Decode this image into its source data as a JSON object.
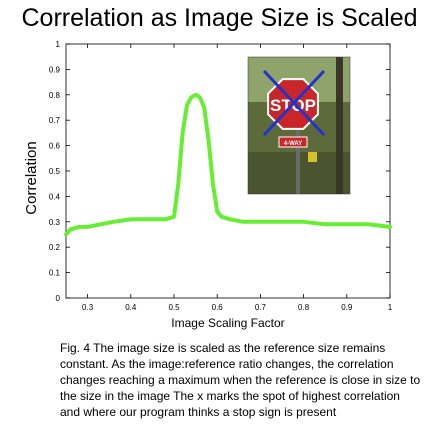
{
  "page": {
    "title": "Correlation as Image Size is Scaled",
    "caption": "Fig. 4 The image size is scaled as the reference size remains constant.  As the image:reference ratio changes, the correlation changes reaching a maximum when the reference is close in size to the size in the image  The x marks the spot of highest correlation and where our program thinks a stop sign is present"
  },
  "chart_data": {
    "type": "line",
    "xlabel": "Image Scaling Factor",
    "ylabel": "Correlation",
    "xlim": [
      0.25,
      1.0
    ],
    "ylim": [
      0,
      1
    ],
    "xticks": [
      "0.3",
      "0.4",
      "0.5",
      "0.6",
      "0.7",
      "0.8",
      "0.9",
      "1"
    ],
    "yticks": [
      "0",
      "0.1",
      "0.2",
      "0.3",
      "0.4",
      "0.5",
      "0.6",
      "0.7",
      "0.8",
      "0.9",
      "1"
    ],
    "grid": false,
    "series": [
      {
        "color": "#66ee33",
        "x": [
          0.25,
          0.26,
          0.28,
          0.3,
          0.33,
          0.36,
          0.4,
          0.43,
          0.46,
          0.48,
          0.5,
          0.51,
          0.52,
          0.53,
          0.54,
          0.55,
          0.56,
          0.57,
          0.58,
          0.59,
          0.6,
          0.61,
          0.63,
          0.66,
          0.7,
          0.75,
          0.8,
          0.85,
          0.9,
          0.95,
          1.0
        ],
        "y": [
          0.25,
          0.27,
          0.28,
          0.28,
          0.29,
          0.3,
          0.31,
          0.31,
          0.31,
          0.31,
          0.32,
          0.45,
          0.65,
          0.76,
          0.79,
          0.8,
          0.79,
          0.75,
          0.62,
          0.45,
          0.34,
          0.32,
          0.31,
          0.3,
          0.3,
          0.3,
          0.3,
          0.29,
          0.29,
          0.29,
          0.28
        ]
      }
    ]
  },
  "inset_photo": {
    "sign_text": "STOP",
    "plate_text": "4-WAY",
    "mark_color": "#2233cc"
  }
}
